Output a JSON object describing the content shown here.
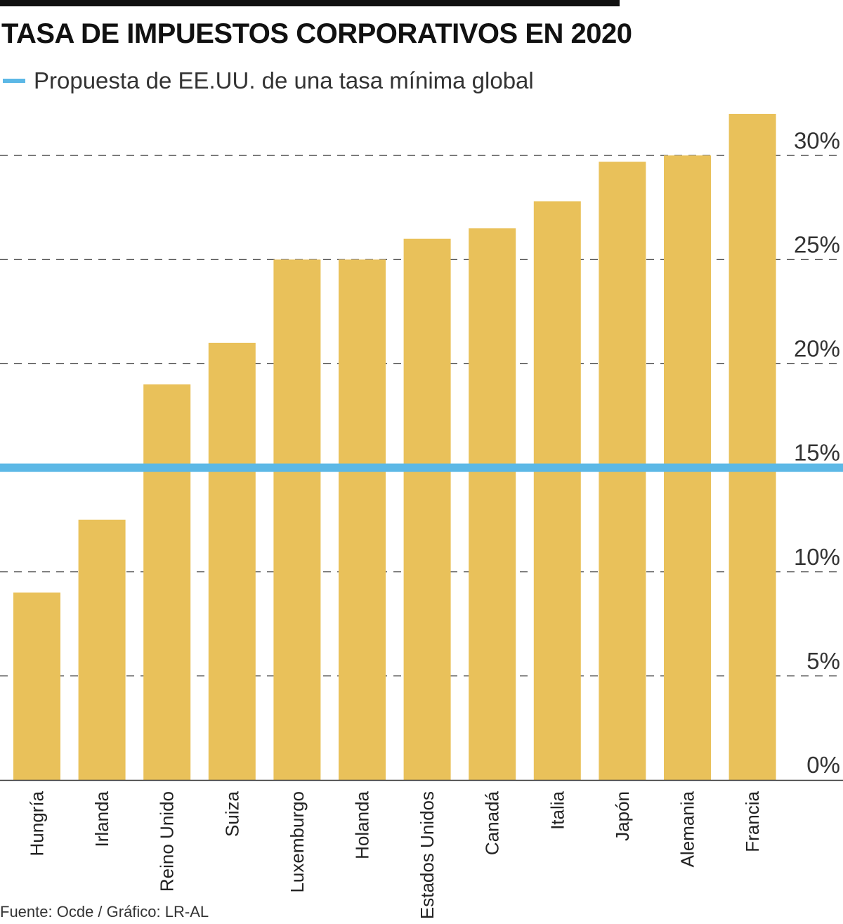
{
  "title": "TASA DE IMPUESTOS CORPORATIVOS EN 2020",
  "legend": {
    "label": "Propuesta de EE.UU. de una tasa mínima global",
    "color": "#5cb8e6"
  },
  "source": "Fuente: Ocde / Gráfico: LR-AL",
  "colors": {
    "bar": "#e9c15a",
    "grid": "#555555",
    "axis": "#333333",
    "reference_line": "#5cb8e6"
  },
  "chart_data": {
    "type": "bar",
    "title": "TASA DE IMPUESTOS CORPORATIVOS EN 2020",
    "categories": [
      "Hungría",
      "Irlanda",
      "Reino Unido",
      "Suiza",
      "Luxemburgo",
      "Holanda",
      "Estados Unidos",
      "Canadá",
      "Italia",
      "Japón",
      "Alemania",
      "Francia"
    ],
    "values": [
      9,
      12.5,
      19,
      21,
      25,
      25,
      26,
      26.5,
      27.8,
      29.7,
      30,
      32
    ],
    "reference_line": {
      "label": "Propuesta de EE.UU. de una tasa mínima global",
      "value": 15
    },
    "y_ticks": [
      0,
      5,
      10,
      15,
      20,
      25,
      30
    ],
    "y_tick_labels": [
      "0%",
      "5%",
      "10%",
      "15%",
      "20%",
      "25%",
      "30%"
    ],
    "xlabel": "",
    "ylabel": "",
    "ylim": [
      0,
      32
    ],
    "grid": true,
    "y_axis_position": "right"
  }
}
